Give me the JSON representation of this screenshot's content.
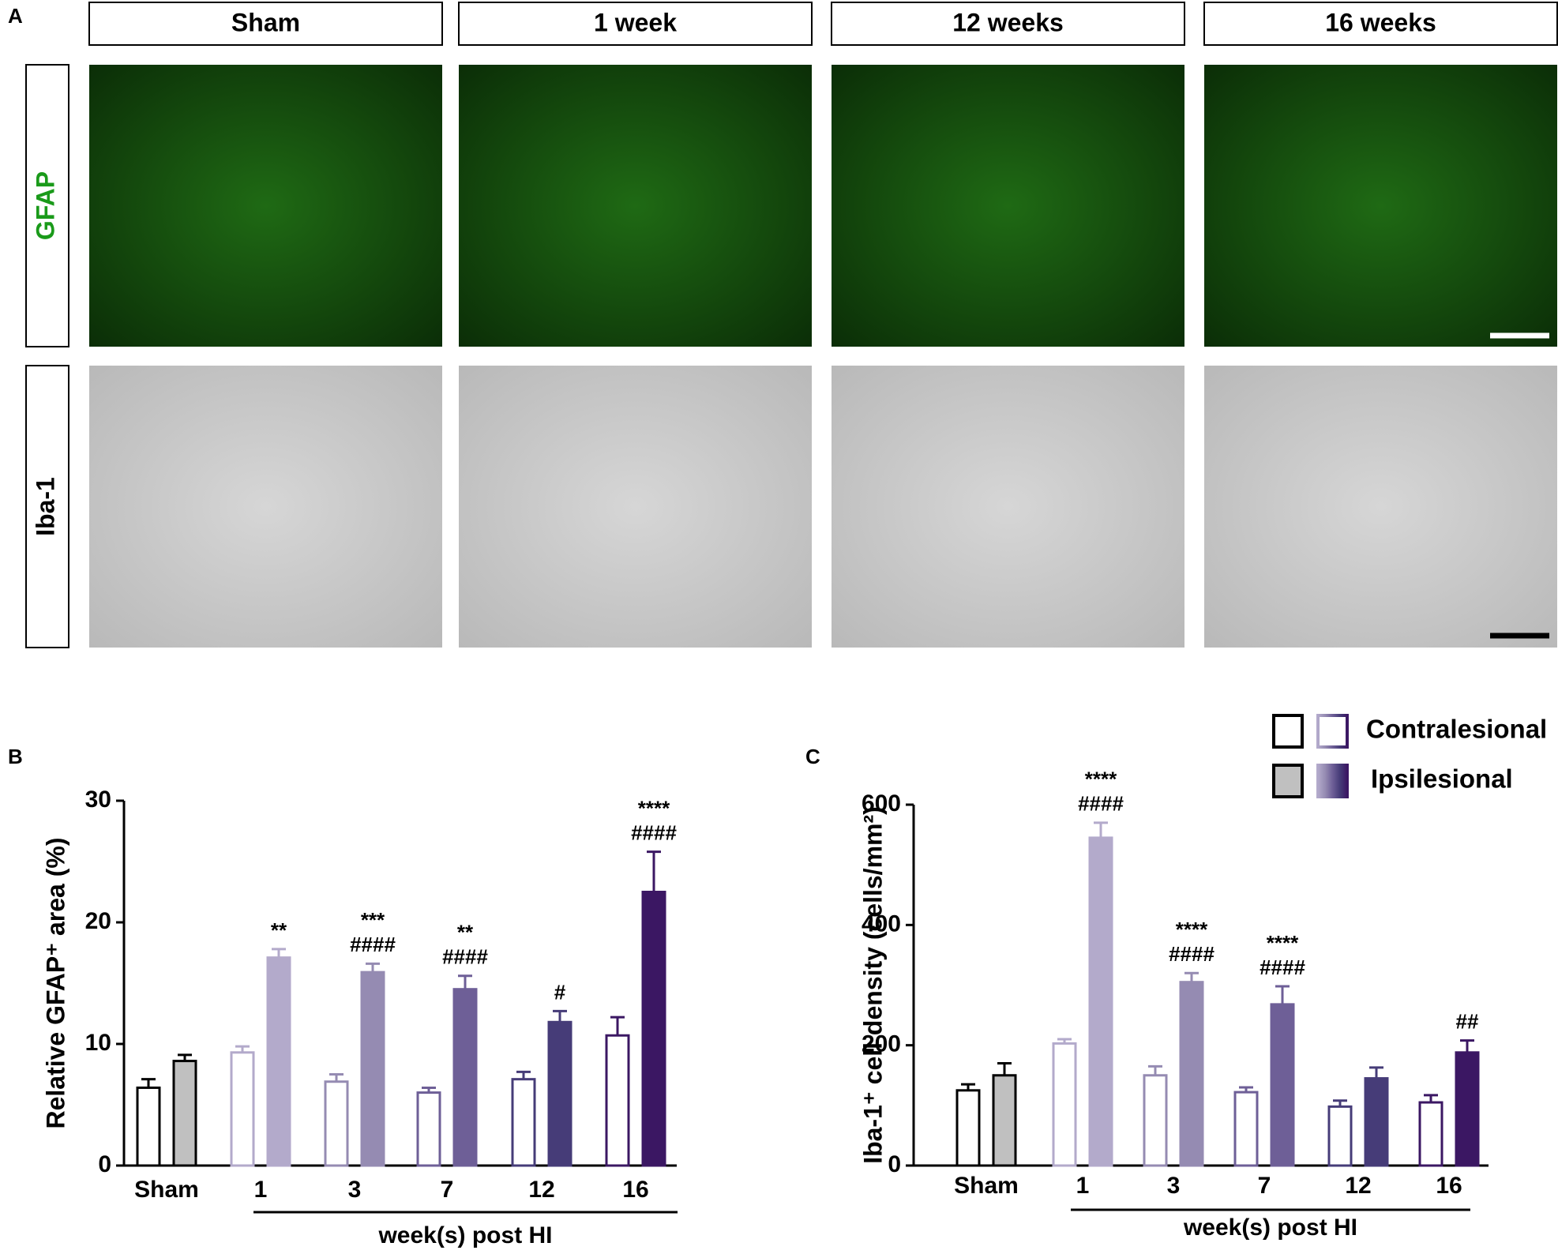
{
  "panel_a": {
    "label": "A",
    "columns": [
      "Sham",
      "1 week",
      "12 weeks",
      "16 weeks"
    ],
    "rows": [
      "GFAP",
      "Iba-1"
    ]
  },
  "legend": {
    "entries": [
      "Contralesional",
      "Ipsilesional"
    ]
  },
  "chart_data": [
    {
      "type": "bar",
      "panel_label": "B",
      "y_label": "Relative GFAP⁺ area (%)",
      "categories": [
        "Sham",
        "1",
        "3",
        "7",
        "12",
        "16"
      ],
      "x_group_label": "week(s) post HI",
      "ylim": [
        0,
        30
      ],
      "yticks": [
        0,
        10,
        20,
        30
      ],
      "series": [
        {
          "colors": [
            "#000000",
            "#b3aacb",
            "#958bb2",
            "#6e5f97",
            "#463c78",
            "#3b1763"
          ],
          "fill": "#ffffff",
          "values": [
            6.4,
            9.3,
            6.9,
            6.0,
            7.1,
            10.7
          ],
          "errors": [
            0.7,
            0.5,
            0.6,
            0.4,
            0.6,
            1.5
          ]
        },
        {
          "colors": [
            "#c0c0c0",
            "#b3aacb",
            "#958bb2",
            "#6e5f97",
            "#463c78",
            "#3b1763"
          ],
          "values": [
            8.6,
            17.1,
            15.9,
            14.5,
            11.8,
            22.5
          ],
          "errors": [
            0.5,
            0.7,
            0.7,
            1.1,
            0.9,
            3.3
          ],
          "annotations": [
            null,
            [
              "**"
            ],
            [
              "***",
              "####"
            ],
            [
              "**",
              "####"
            ],
            [
              "#"
            ],
            [
              "****",
              "####"
            ]
          ]
        }
      ]
    },
    {
      "type": "bar",
      "panel_label": "C",
      "y_label": "Iba-1⁺ cell density (cells/mm²)",
      "categories": [
        "Sham",
        "1",
        "3",
        "7",
        "12",
        "16"
      ],
      "x_group_label": "week(s) post HI",
      "ylim": [
        0,
        600
      ],
      "yticks": [
        0,
        200,
        400,
        600
      ],
      "series": [
        {
          "name": "Contralesional",
          "colors": [
            "#000000",
            "#b3aacb",
            "#958bb2",
            "#6e5f97",
            "#463c78",
            "#3b1763"
          ],
          "fill": "#ffffff",
          "values": [
            125,
            203,
            150,
            122,
            98,
            105
          ],
          "errors": [
            10,
            7,
            15,
            8,
            10,
            12
          ]
        },
        {
          "name": "Ipsilesional",
          "colors": [
            "#c0c0c0",
            "#b3aacb",
            "#958bb2",
            "#6e5f97",
            "#463c78",
            "#3b1763"
          ],
          "values": [
            150,
            545,
            305,
            268,
            145,
            188
          ],
          "errors": [
            20,
            25,
            15,
            30,
            18,
            20
          ],
          "annotations": [
            null,
            [
              "****",
              "####"
            ],
            [
              "****",
              "####"
            ],
            [
              "****",
              "####"
            ],
            null,
            [
              "##"
            ]
          ]
        }
      ]
    }
  ]
}
